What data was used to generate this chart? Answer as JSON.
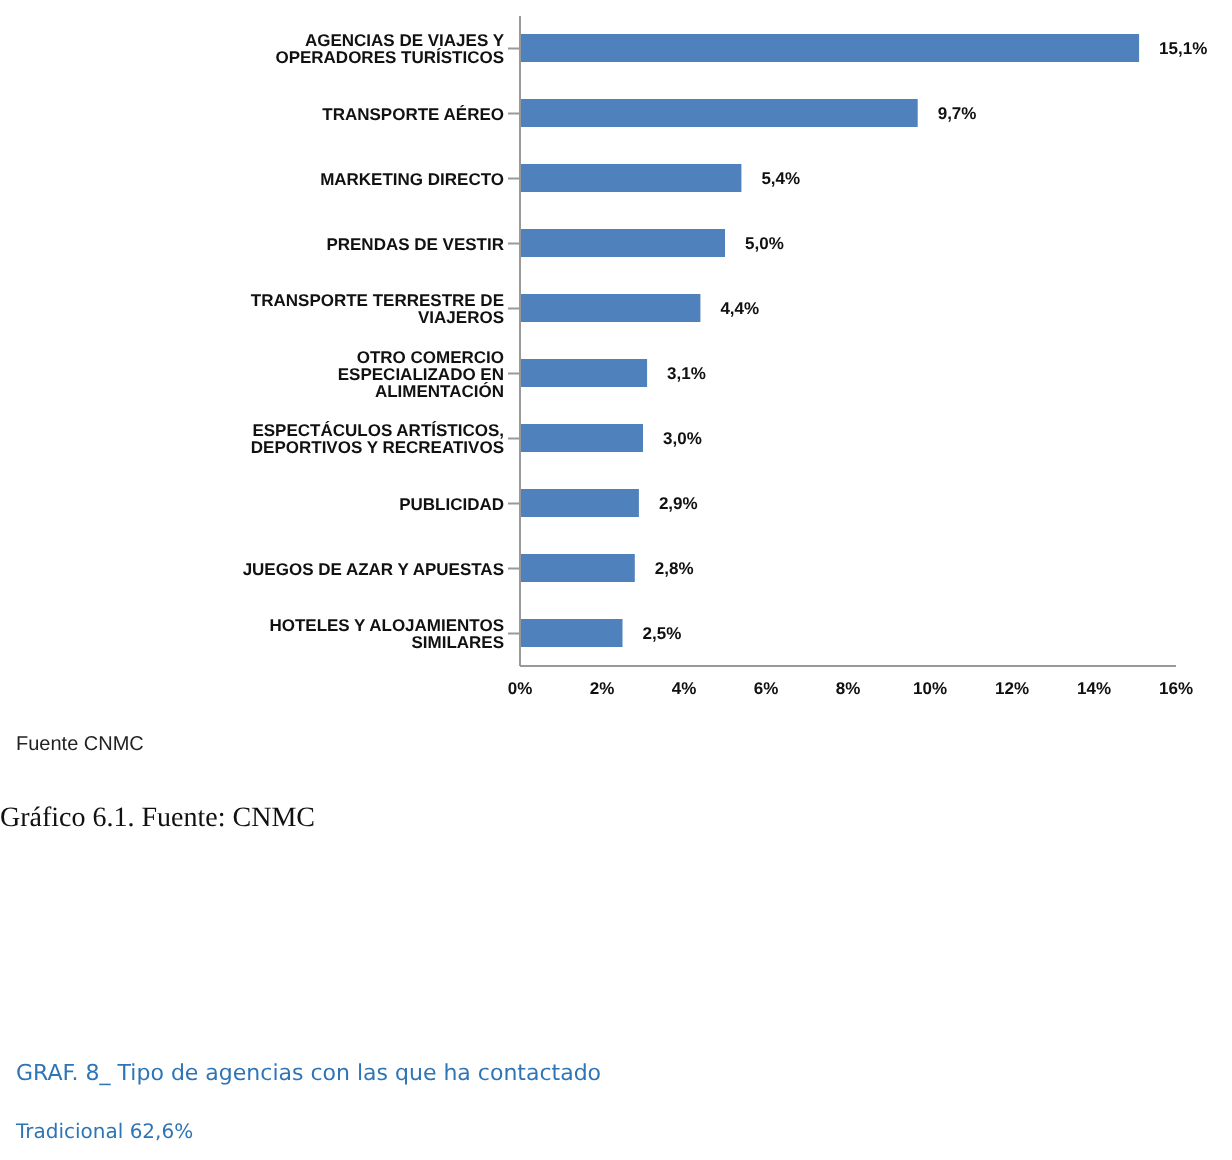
{
  "chart_data": {
    "type": "bar",
    "orientation": "horizontal",
    "categories": [
      "AGENCIAS DE VIAJES Y OPERADORES TURÍSTICOS",
      "TRANSPORTE AÉREO",
      "MARKETING DIRECTO",
      "PRENDAS DE VESTIR",
      "TRANSPORTE TERRESTRE DE VIAJEROS",
      "OTRO COMERCIO ESPECIALIZADO EN ALIMENTACIÓN",
      "ESPECTÁCULOS ARTÍSTICOS, DEPORTIVOS Y RECREATIVOS",
      "PUBLICIDAD",
      "JUEGOS DE AZAR Y APUESTAS",
      "HOTELES  Y ALOJAMIENTOS SIMILARES"
    ],
    "values": [
      15.1,
      9.7,
      5.4,
      5.0,
      4.4,
      3.1,
      3.0,
      2.9,
      2.8,
      2.5
    ],
    "value_labels": [
      "15,1%",
      "9,7%",
      "5,4%",
      "5,0%",
      "4,4%",
      "3,1%",
      "3,0%",
      "2,9%",
      "2,8%",
      "2,5%"
    ],
    "color": "#4f81bd",
    "xlim": [
      0,
      16
    ],
    "xticks": [
      {
        "value": 0,
        "label": "0%"
      },
      {
        "value": 2,
        "label": "2%"
      },
      {
        "value": 4,
        "label": "4%"
      },
      {
        "value": 6,
        "label": "6%"
      },
      {
        "value": 8,
        "label": "8%"
      },
      {
        "value": 10,
        "label": "10%"
      },
      {
        "value": 12,
        "label": "12%"
      },
      {
        "value": 14,
        "label": "14%"
      },
      {
        "value": 16,
        "label": "16%"
      }
    ],
    "grid": false,
    "legend": false,
    "annotations": [
      "Fuente CNMC",
      "Gráfico 6.1. Fuente: CNMC",
      "GRAF. 8_ Tipo de agencias con las que ha contactado",
      "Tradicional 62,6%"
    ]
  }
}
